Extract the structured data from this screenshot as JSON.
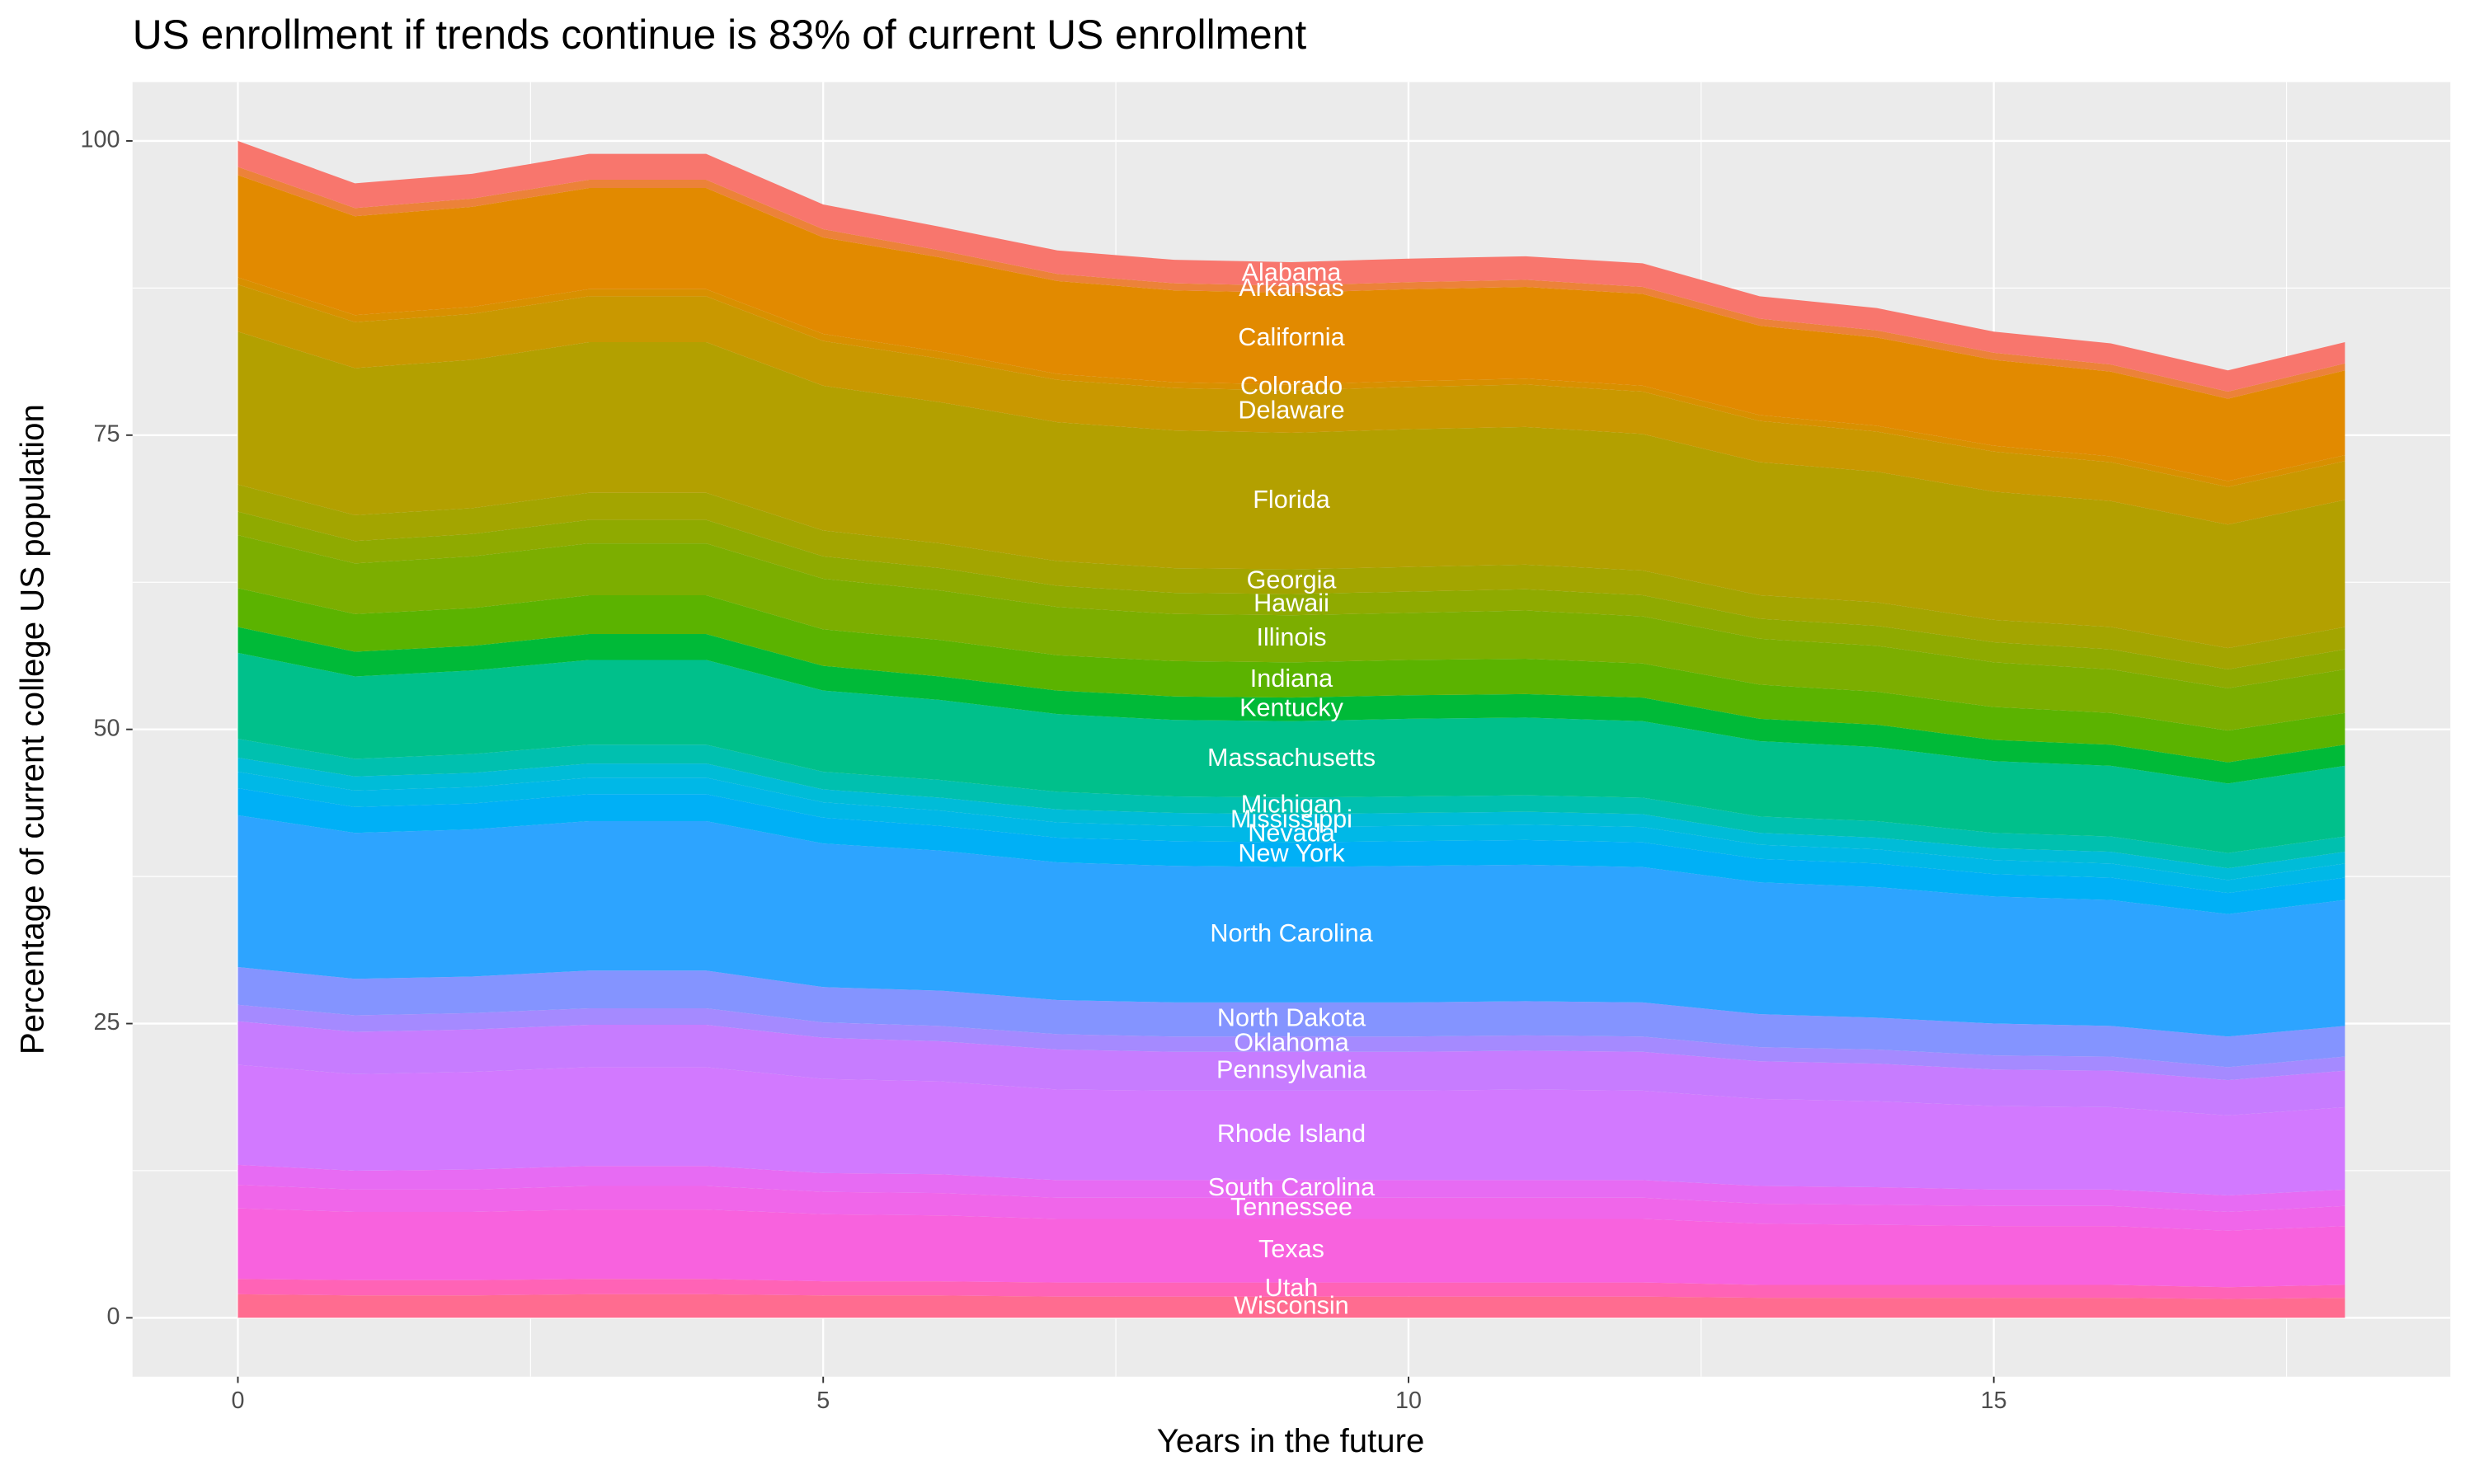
{
  "chart_data": {
    "type": "stacked-area",
    "title": "US enrollment if trends continue is 83% of current US enrollment",
    "x_label": "Years in the future",
    "y_label": "Percentage of current college US population",
    "x": [
      0,
      1,
      2,
      3,
      4,
      5,
      6,
      7,
      8,
      9,
      10,
      11,
      12,
      13,
      14,
      15,
      16,
      17,
      18
    ],
    "xlim": [
      -0.9,
      18.9
    ],
    "xticks": [
      0,
      5,
      10,
      15
    ],
    "ylim": [
      -5,
      105
    ],
    "yticks": [
      0,
      25,
      50,
      75,
      100
    ],
    "grid": true,
    "series": [
      {
        "name": "Alabama",
        "color": "#F8766D",
        "values": [
          2.2,
          2.1,
          2.1,
          2.2,
          2.2,
          2.1,
          2.0,
          2.0,
          2.0,
          2.0,
          2.0,
          2.0,
          2.0,
          1.9,
          1.9,
          1.8,
          1.8,
          1.8,
          1.8
        ]
      },
      {
        "name": "Arkansas",
        "color": "#EC8239",
        "values": [
          0.7,
          0.7,
          0.7,
          0.7,
          0.7,
          0.7,
          0.6,
          0.6,
          0.6,
          0.6,
          0.6,
          0.6,
          0.6,
          0.6,
          0.6,
          0.6,
          0.6,
          0.6,
          0.6
        ]
      },
      {
        "name": "California",
        "color": "#E28A00",
        "values": [
          8.7,
          8.4,
          8.5,
          8.6,
          8.6,
          8.2,
          8.0,
          7.9,
          7.8,
          7.8,
          7.8,
          7.8,
          7.8,
          7.6,
          7.5,
          7.3,
          7.2,
          7.0,
          7.2
        ]
      },
      {
        "name": "Colorado",
        "color": "#D89000",
        "values": [
          0.6,
          0.6,
          0.6,
          0.6,
          0.6,
          0.6,
          0.6,
          0.5,
          0.5,
          0.5,
          0.5,
          0.5,
          0.5,
          0.5,
          0.5,
          0.5,
          0.5,
          0.5,
          0.5
        ]
      },
      {
        "name": "Delaware",
        "color": "#C99800",
        "values": [
          4.0,
          3.9,
          3.9,
          3.9,
          3.9,
          3.8,
          3.7,
          3.6,
          3.6,
          3.6,
          3.6,
          3.6,
          3.6,
          3.5,
          3.4,
          3.4,
          3.3,
          3.2,
          3.3
        ]
      },
      {
        "name": "Florida",
        "color": "#B3A000",
        "values": [
          13.0,
          12.5,
          12.6,
          12.8,
          12.8,
          12.3,
          12.0,
          11.8,
          11.7,
          11.6,
          11.7,
          11.7,
          11.6,
          11.3,
          11.1,
          10.9,
          10.7,
          10.5,
          10.8
        ]
      },
      {
        "name": "Georgia",
        "color": "#A3A500",
        "values": [
          2.3,
          2.2,
          2.2,
          2.3,
          2.3,
          2.2,
          2.1,
          2.1,
          2.1,
          2.1,
          2.1,
          2.1,
          2.1,
          2.0,
          2.0,
          1.9,
          1.9,
          1.8,
          1.9
        ]
      },
      {
        "name": "Hawaii",
        "color": "#8FAA00",
        "values": [
          2.0,
          1.9,
          1.9,
          2.0,
          2.0,
          1.9,
          1.9,
          1.8,
          1.8,
          1.8,
          1.8,
          1.8,
          1.8,
          1.7,
          1.7,
          1.7,
          1.7,
          1.6,
          1.7
        ]
      },
      {
        "name": "Illinois",
        "color": "#7CAE00",
        "values": [
          4.5,
          4.3,
          4.4,
          4.4,
          4.4,
          4.3,
          4.2,
          4.1,
          4.0,
          4.0,
          4.0,
          4.1,
          4.0,
          3.9,
          3.9,
          3.8,
          3.7,
          3.6,
          3.7
        ]
      },
      {
        "name": "Indiana",
        "color": "#5BB300",
        "values": [
          3.3,
          3.2,
          3.2,
          3.3,
          3.3,
          3.1,
          3.1,
          3.0,
          3.0,
          3.0,
          3.0,
          3.0,
          2.9,
          2.9,
          2.8,
          2.8,
          2.7,
          2.7,
          2.7
        ]
      },
      {
        "name": "Kentucky",
        "color": "#00BA38",
        "values": [
          2.2,
          2.1,
          2.1,
          2.2,
          2.2,
          2.1,
          2.0,
          2.0,
          2.0,
          2.0,
          2.0,
          2.0,
          2.0,
          1.9,
          1.9,
          1.8,
          1.8,
          1.8,
          1.8
        ]
      },
      {
        "name": "Massachusetts",
        "color": "#00C08B",
        "values": [
          7.3,
          7.0,
          7.1,
          7.2,
          7.2,
          6.9,
          6.8,
          6.6,
          6.5,
          6.5,
          6.6,
          6.6,
          6.5,
          6.4,
          6.3,
          6.1,
          6.0,
          5.9,
          6.0
        ]
      },
      {
        "name": "Michigan",
        "color": "#00C0AF",
        "values": [
          1.6,
          1.5,
          1.6,
          1.6,
          1.6,
          1.5,
          1.5,
          1.5,
          1.4,
          1.4,
          1.4,
          1.4,
          1.4,
          1.4,
          1.4,
          1.3,
          1.3,
          1.3,
          1.3
        ]
      },
      {
        "name": "Mississippi",
        "color": "#00BCD8",
        "values": [
          1.2,
          1.2,
          1.2,
          1.2,
          1.2,
          1.1,
          1.1,
          1.1,
          1.1,
          1.1,
          1.1,
          1.1,
          1.1,
          1.0,
          1.0,
          1.0,
          1.0,
          1.0,
          1.0
        ]
      },
      {
        "name": "Nevada",
        "color": "#00B8E7",
        "values": [
          1.4,
          1.4,
          1.4,
          1.4,
          1.4,
          1.3,
          1.3,
          1.3,
          1.3,
          1.3,
          1.3,
          1.3,
          1.3,
          1.2,
          1.2,
          1.2,
          1.2,
          1.1,
          1.2
        ]
      },
      {
        "name": "New York",
        "color": "#00B0F6",
        "values": [
          2.3,
          2.2,
          2.2,
          2.3,
          2.3,
          2.2,
          2.1,
          2.1,
          2.1,
          2.1,
          2.1,
          2.1,
          2.1,
          2.0,
          2.0,
          1.9,
          1.9,
          1.8,
          1.9
        ]
      },
      {
        "name": "North Carolina",
        "color": "#2DA4FF",
        "values": [
          12.9,
          12.4,
          12.5,
          12.7,
          12.7,
          12.2,
          11.9,
          11.7,
          11.6,
          11.5,
          11.6,
          11.6,
          11.5,
          11.2,
          11.1,
          10.8,
          10.7,
          10.4,
          10.7
        ]
      },
      {
        "name": "North Dakota",
        "color": "#8494FF",
        "values": [
          3.2,
          3.1,
          3.1,
          3.2,
          3.2,
          3.0,
          3.0,
          2.9,
          2.9,
          2.9,
          2.9,
          2.9,
          2.9,
          2.8,
          2.7,
          2.7,
          2.6,
          2.6,
          2.6
        ]
      },
      {
        "name": "Oklahoma",
        "color": "#A58AFF",
        "values": [
          1.4,
          1.4,
          1.4,
          1.4,
          1.4,
          1.3,
          1.3,
          1.3,
          1.3,
          1.3,
          1.3,
          1.3,
          1.3,
          1.2,
          1.2,
          1.2,
          1.2,
          1.1,
          1.2
        ]
      },
      {
        "name": "Pennsylvania",
        "color": "#C77CFF",
        "values": [
          3.7,
          3.6,
          3.6,
          3.6,
          3.6,
          3.5,
          3.4,
          3.4,
          3.3,
          3.3,
          3.3,
          3.3,
          3.3,
          3.2,
          3.2,
          3.1,
          3.1,
          3.0,
          3.1
        ]
      },
      {
        "name": "Rhode Island",
        "color": "#D279FF",
        "values": [
          8.5,
          8.2,
          8.3,
          8.4,
          8.4,
          8.0,
          7.9,
          7.7,
          7.6,
          7.6,
          7.6,
          7.7,
          7.6,
          7.4,
          7.3,
          7.1,
          7.0,
          6.8,
          7.0
        ]
      },
      {
        "name": "South Carolina",
        "color": "#E76BF3",
        "values": [
          1.7,
          1.6,
          1.7,
          1.7,
          1.7,
          1.6,
          1.6,
          1.5,
          1.5,
          1.5,
          1.5,
          1.5,
          1.5,
          1.5,
          1.5,
          1.4,
          1.4,
          1.4,
          1.4
        ]
      },
      {
        "name": "Tennessee",
        "color": "#F066EA",
        "values": [
          2.0,
          1.9,
          1.9,
          2.0,
          2.0,
          1.9,
          1.9,
          1.8,
          1.8,
          1.8,
          1.8,
          1.8,
          1.8,
          1.7,
          1.7,
          1.7,
          1.7,
          1.6,
          1.7
        ]
      },
      {
        "name": "Texas",
        "color": "#F862DE",
        "values": [
          6.0,
          5.8,
          5.8,
          5.9,
          5.9,
          5.7,
          5.6,
          5.4,
          5.4,
          5.4,
          5.4,
          5.4,
          5.4,
          5.2,
          5.1,
          5.0,
          5.0,
          4.8,
          5.0
        ]
      },
      {
        "name": "Utah",
        "color": "#FF63B6",
        "values": [
          1.3,
          1.3,
          1.3,
          1.3,
          1.3,
          1.2,
          1.2,
          1.2,
          1.2,
          1.2,
          1.2,
          1.2,
          1.2,
          1.1,
          1.1,
          1.1,
          1.1,
          1.0,
          1.1
        ]
      },
      {
        "name": "Wisconsin",
        "color": "#FF6C90",
        "values": [
          2.0,
          1.9,
          1.9,
          2.0,
          2.0,
          1.9,
          1.9,
          1.8,
          1.8,
          1.8,
          1.8,
          1.8,
          1.8,
          1.7,
          1.7,
          1.7,
          1.7,
          1.6,
          1.7
        ]
      }
    ]
  }
}
